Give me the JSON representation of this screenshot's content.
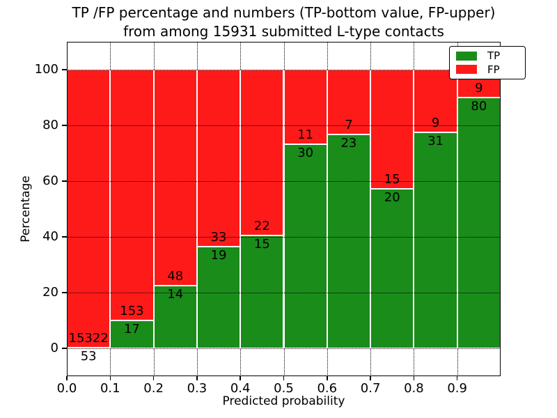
{
  "chart_data": {
    "type": "bar",
    "stacked": true,
    "title": "TP /FP percentage and numbers (TP-bottom value, FP-upper)\nfrom among 15931 submitted L-type contacts",
    "xlabel": "Predicted probability",
    "ylabel": "Percentage",
    "xlim": [
      0.0,
      1.0
    ],
    "ylim": [
      -10,
      110
    ],
    "x_tick_labels": [
      "0.0",
      "0.1",
      "0.2",
      "0.3",
      "0.4",
      "0.5",
      "0.6",
      "0.7",
      "0.8",
      "0.9"
    ],
    "y_tick_values": [
      0,
      20,
      40,
      60,
      80,
      100
    ],
    "grid": "dotted",
    "legend": {
      "position": "upper right",
      "entries": [
        {
          "label": "TP",
          "color": "#1a8c1a"
        },
        {
          "label": "FP",
          "color": "#ff1a1a"
        }
      ]
    },
    "bins": [
      {
        "x_start": 0.0,
        "x_end": 0.1,
        "tp_count": 53,
        "fp_count": 15322,
        "tp_pct": 0.34
      },
      {
        "x_start": 0.1,
        "x_end": 0.2,
        "tp_count": 17,
        "fp_count": 153,
        "tp_pct": 10.0
      },
      {
        "x_start": 0.2,
        "x_end": 0.3,
        "tp_count": 14,
        "fp_count": 48,
        "tp_pct": 22.58
      },
      {
        "x_start": 0.3,
        "x_end": 0.4,
        "tp_count": 19,
        "fp_count": 33,
        "tp_pct": 36.54
      },
      {
        "x_start": 0.4,
        "x_end": 0.5,
        "tp_count": 15,
        "fp_count": 22,
        "tp_pct": 40.54
      },
      {
        "x_start": 0.5,
        "x_end": 0.6,
        "tp_count": 30,
        "fp_count": 11,
        "tp_pct": 73.17
      },
      {
        "x_start": 0.6,
        "x_end": 0.7,
        "tp_count": 23,
        "fp_count": 7,
        "tp_pct": 76.67
      },
      {
        "x_start": 0.7,
        "x_end": 0.8,
        "tp_count": 20,
        "fp_count": 15,
        "tp_pct": 57.14
      },
      {
        "x_start": 0.8,
        "x_end": 0.9,
        "tp_count": 31,
        "fp_count": 9,
        "tp_pct": 77.5
      },
      {
        "x_start": 0.9,
        "x_end": 1.0,
        "tp_count": 80,
        "fp_count": 9,
        "tp_pct": 89.89
      }
    ]
  }
}
